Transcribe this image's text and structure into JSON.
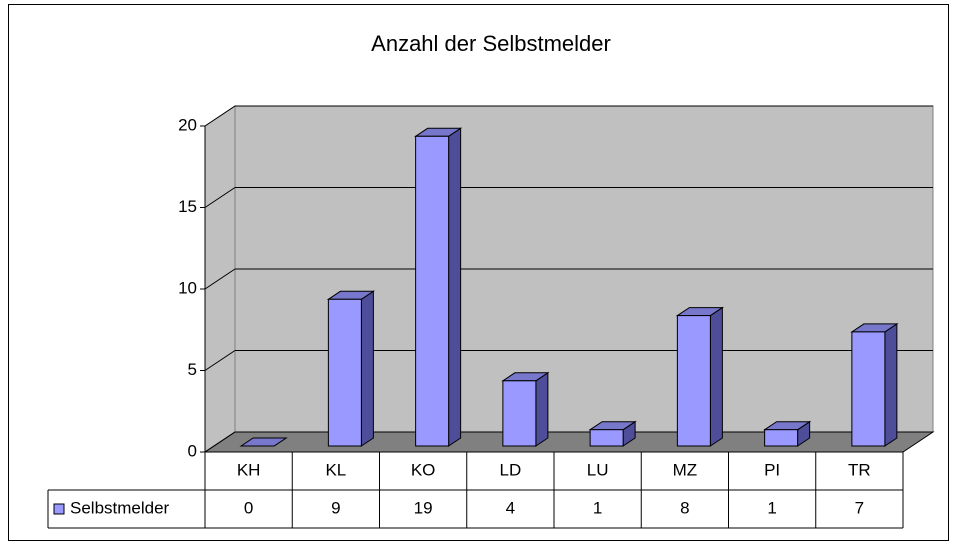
{
  "chart_data": {
    "type": "bar3d",
    "title": "Anzahl der Selbstmelder",
    "categories": [
      "KH",
      "KL",
      "KO",
      "LD",
      "LU",
      "MZ",
      "PI",
      "TR"
    ],
    "series": [
      {
        "name": "Selbstmelder",
        "color": "#9999ff",
        "values": [
          0,
          9,
          19,
          4,
          1,
          8,
          1,
          7
        ]
      }
    ],
    "ylim": [
      0,
      20
    ],
    "yticks": [
      0,
      5,
      10,
      15,
      20
    ],
    "grid": true,
    "data_table": true
  }
}
